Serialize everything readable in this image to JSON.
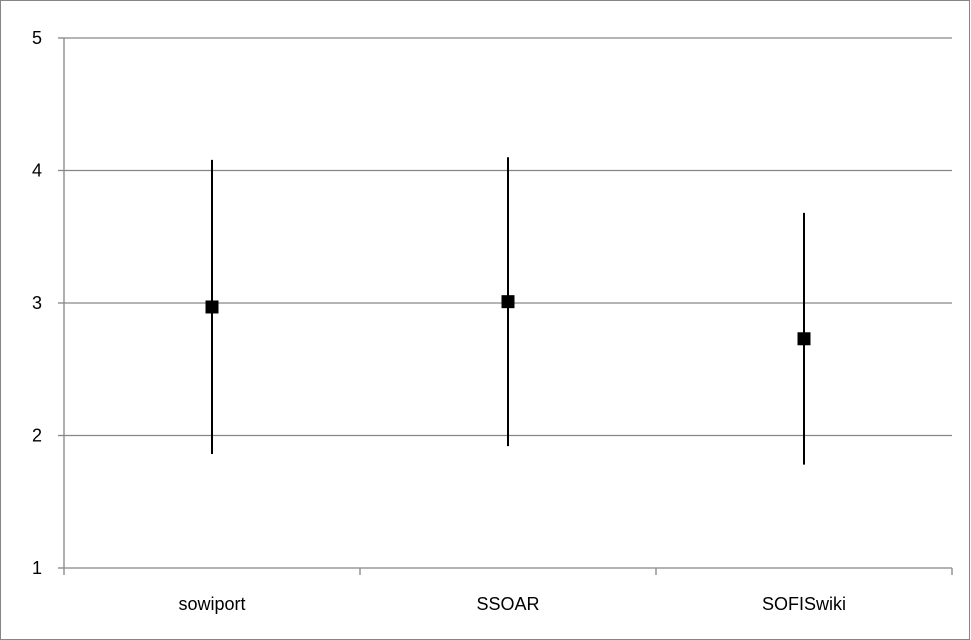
{
  "chart_data": {
    "type": "scatter",
    "categories": [
      "sowiport",
      "SSOAR",
      "SOFISwiki"
    ],
    "series": [
      {
        "values": [
          2.97,
          3.01,
          2.73
        ],
        "error_low": [
          1.86,
          1.92,
          1.78
        ],
        "error_high": [
          4.08,
          4.1,
          3.68
        ]
      }
    ],
    "ylim": [
      1,
      5
    ],
    "yticks": [
      "1",
      "2",
      "3",
      "4",
      "5"
    ],
    "grid": true,
    "legend": "none",
    "title": "",
    "xlabel": "",
    "ylabel": "",
    "colors": {
      "gridline": "#868686",
      "marker": "#000000",
      "errorbar": "#000000",
      "frame": "#868686"
    }
  }
}
